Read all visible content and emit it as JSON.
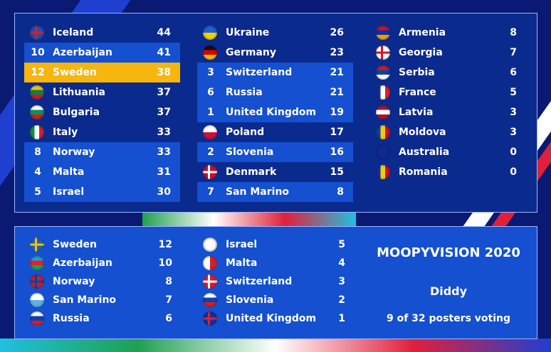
{
  "scoreboard": [
    {
      "country": "Iceland",
      "points": 44
    },
    {
      "country": "Azerbaijan",
      "points": 41,
      "received": 10
    },
    {
      "country": "Sweden",
      "points": 38,
      "received": 12
    },
    {
      "country": "Lithuania",
      "points": 37
    },
    {
      "country": "Bulgaria",
      "points": 37
    },
    {
      "country": "Italy",
      "points": 33
    },
    {
      "country": "Norway",
      "points": 33,
      "received": 8
    },
    {
      "country": "Malta",
      "points": 31,
      "received": 4
    },
    {
      "country": "Israel",
      "points": 30,
      "received": 5
    },
    {
      "country": "Ukraine",
      "points": 26
    },
    {
      "country": "Germany",
      "points": 23
    },
    {
      "country": "Switzerland",
      "points": 21,
      "received": 3
    },
    {
      "country": "Russia",
      "points": 21,
      "received": 6
    },
    {
      "country": "United Kingdom",
      "points": 19,
      "received": 1
    },
    {
      "country": "Poland",
      "points": 17
    },
    {
      "country": "Slovenia",
      "points": 16,
      "received": 2
    },
    {
      "country": "Denmark",
      "points": 15
    },
    {
      "country": "San Marino",
      "points": 8,
      "received": 7
    },
    {
      "country": "Armenia",
      "points": 8
    },
    {
      "country": "Georgia",
      "points": 7
    },
    {
      "country": "Serbia",
      "points": 6
    },
    {
      "country": "France",
      "points": 5
    },
    {
      "country": "Latvia",
      "points": 3
    },
    {
      "country": "Moldova",
      "points": 3
    },
    {
      "country": "Australia",
      "points": 0
    },
    {
      "country": "Romania",
      "points": 0
    }
  ],
  "voting": {
    "title": "MOOPYVISION 2020",
    "voter": "Diddy",
    "status": "9 of 32 posters voting",
    "given": [
      {
        "country": "Sweden",
        "points": 12
      },
      {
        "country": "Azerbaijan",
        "points": 10
      },
      {
        "country": "Norway",
        "points": 8
      },
      {
        "country": "San Marino",
        "points": 7
      },
      {
        "country": "Russia",
        "points": 6
      },
      {
        "country": "Israel",
        "points": 5
      },
      {
        "country": "Malta",
        "points": 4
      },
      {
        "country": "Switzerland",
        "points": 3
      },
      {
        "country": "Slovenia",
        "points": 2
      },
      {
        "country": "United Kingdom",
        "points": 1
      }
    ]
  }
}
